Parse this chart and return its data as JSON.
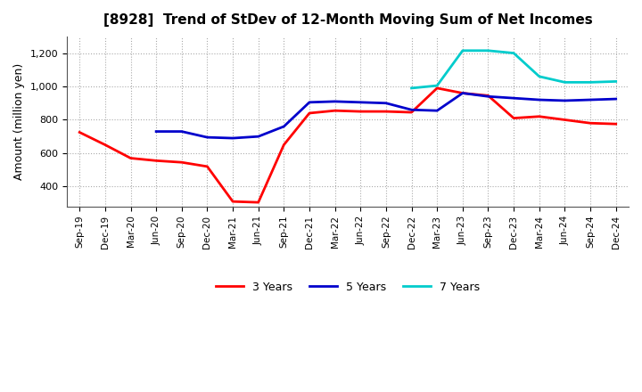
{
  "title": "[8928]  Trend of StDev of 12-Month Moving Sum of Net Incomes",
  "ylabel": "Amount (million yen)",
  "background_color": "#ffffff",
  "grid_color": "#aaaaaa",
  "ylim": [
    280,
    1300
  ],
  "yticks": [
    400,
    600,
    800,
    1000,
    1200
  ],
  "ytick_labels": [
    "400",
    "600",
    "800",
    "1,000",
    "1,200"
  ],
  "x_labels": [
    "Sep-19",
    "Dec-19",
    "Mar-20",
    "Jun-20",
    "Sep-20",
    "Dec-20",
    "Mar-21",
    "Jun-21",
    "Sep-21",
    "Dec-21",
    "Mar-22",
    "Jun-22",
    "Sep-22",
    "Dec-22",
    "Mar-23",
    "Jun-23",
    "Sep-23",
    "Dec-23",
    "Mar-24",
    "Jun-24",
    "Sep-24",
    "Dec-24"
  ],
  "series": {
    "3 Years": {
      "color": "#ff0000",
      "values": [
        725,
        650,
        570,
        555,
        545,
        520,
        310,
        305,
        650,
        840,
        855,
        850,
        850,
        845,
        990,
        960,
        945,
        810,
        820,
        800,
        780,
        775
      ]
    },
    "5 Years": {
      "color": "#0000cc",
      "values": [
        null,
        null,
        null,
        730,
        730,
        695,
        690,
        700,
        760,
        905,
        910,
        905,
        900,
        860,
        855,
        960,
        940,
        930,
        920,
        915,
        920,
        925
      ]
    },
    "7 Years": {
      "color": "#00cccc",
      "values": [
        null,
        null,
        null,
        null,
        null,
        null,
        null,
        null,
        null,
        null,
        null,
        null,
        null,
        990,
        1005,
        1215,
        1215,
        1200,
        1060,
        1025,
        1025,
        1030
      ]
    },
    "10 Years": {
      "color": "#006600",
      "values": [
        null,
        null,
        null,
        null,
        null,
        null,
        null,
        null,
        null,
        null,
        null,
        null,
        null,
        null,
        null,
        null,
        null,
        null,
        null,
        null,
        null,
        null
      ]
    }
  }
}
